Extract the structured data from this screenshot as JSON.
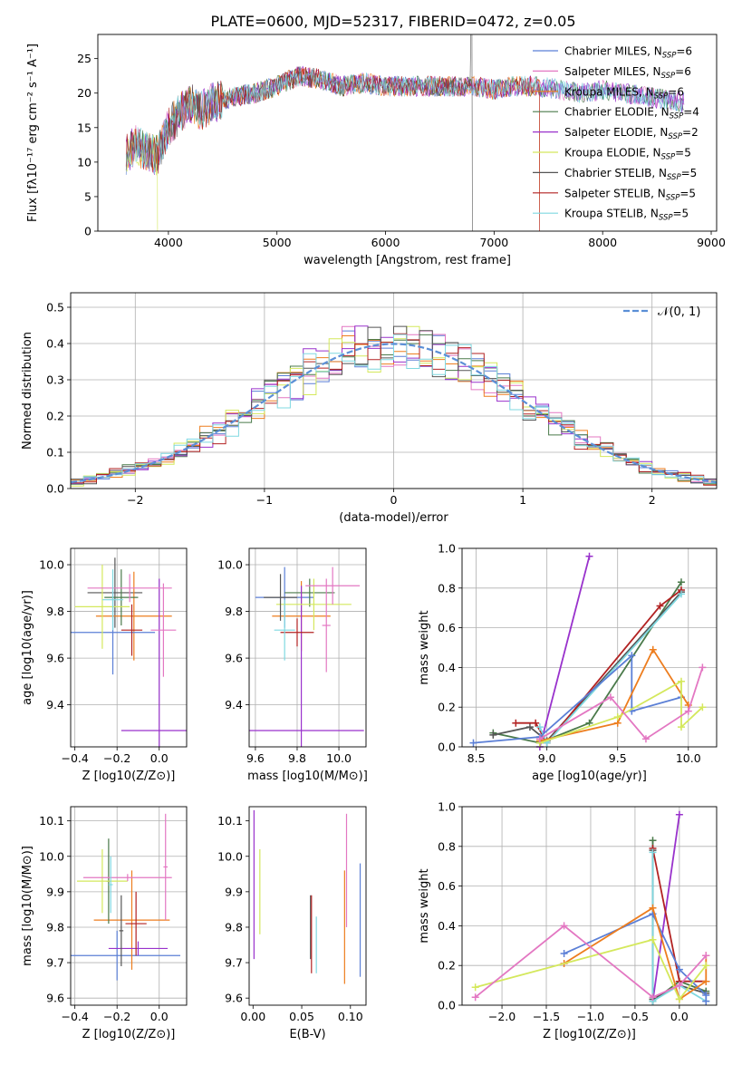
{
  "figure": {
    "title": "PLATE=0600, MJD=52317, FIBERID=0472, z=0.05"
  },
  "colors": {
    "chabrier_miles": "#5b7fd6",
    "salpeter_miles": "#e377c2",
    "kroupa_miles": "#ed7d1e",
    "chabrier_elodie": "#4a7a4a",
    "salpeter_elodie": "#9932cc",
    "kroupa_elodie": "#d4e85c",
    "chabrier_stelib": "#555555",
    "salpeter_stelib": "#b22222",
    "kroupa_stelib": "#7fd8e0",
    "normal_curve": "#5b8fd6"
  },
  "chart_data": [
    {
      "id": "spectrum",
      "type": "line",
      "xlabel": "wavelength [Angstrom, rest frame]",
      "ylabel": "Flux [fλ10⁻¹⁷ erg cm⁻² s⁻¹ A⁻¹]",
      "xlim": [
        3350,
        9050
      ],
      "ylim": [
        0,
        28.5
      ],
      "xticks": [
        4000,
        5000,
        6000,
        7000,
        8000,
        9000
      ],
      "yticks": [
        0,
        5,
        10,
        15,
        20,
        25
      ],
      "grid": false,
      "legend_position": "top-right",
      "legend": [
        "Chabrier MILES, N_SSP=6",
        "Salpeter MILES, N_SSP=6",
        "Kroupa MILES, N_SSP=6",
        "Chabrier ELODIE, N_SSP=4",
        "Salpeter ELODIE, N_SSP=2",
        "Kroupa ELODIE, N_SSP=5",
        "Chabrier STELIB, N_SSP=5",
        "Salpeter STELIB, N_SSP=5",
        "Kroupa STELIB, N_SSP=5"
      ],
      "continuum": [
        [
          3600,
          11
        ],
        [
          3700,
          12.5
        ],
        [
          3800,
          11.5
        ],
        [
          3900,
          11
        ],
        [
          4000,
          15
        ],
        [
          4100,
          17
        ],
        [
          4200,
          18.5
        ],
        [
          4300,
          17.5
        ],
        [
          4400,
          18.5
        ],
        [
          4600,
          19.5
        ],
        [
          4800,
          20
        ],
        [
          5000,
          21
        ],
        [
          5200,
          22.5
        ],
        [
          5400,
          22
        ],
        [
          5600,
          21
        ],
        [
          5800,
          21.5
        ],
        [
          6000,
          21
        ],
        [
          6200,
          21
        ],
        [
          6400,
          21
        ],
        [
          6600,
          21
        ],
        [
          6800,
          21
        ],
        [
          7000,
          20.5
        ],
        [
          7200,
          21
        ],
        [
          7400,
          21
        ],
        [
          7600,
          20.5
        ],
        [
          7800,
          20
        ],
        [
          8000,
          20.5
        ],
        [
          8200,
          20
        ],
        [
          8400,
          19.5
        ],
        [
          8600,
          19
        ],
        [
          8800,
          18.5
        ]
      ]
    },
    {
      "id": "residuals",
      "type": "histogram",
      "xlabel": "(data-model)/error",
      "ylabel": "Normed distribution",
      "xlim": [
        -2.5,
        2.5
      ],
      "ylim": [
        0,
        0.54
      ],
      "xticks": [
        -2,
        -1,
        0,
        1,
        2
      ],
      "yticks": [
        0.0,
        0.1,
        0.2,
        0.3,
        0.4,
        0.5
      ],
      "grid": true,
      "legend_position": "top-right",
      "legend": [
        "𝒩(0, 1)"
      ],
      "bin_width": 0.1
    },
    {
      "id": "age_vs_Z",
      "type": "scatter",
      "xlabel": "Z [log10(Z/Z⊙)]",
      "ylabel": "age [log10(age/yr)]",
      "xlim": [
        -0.42,
        0.13
      ],
      "ylim": [
        9.22,
        10.07
      ],
      "xticks": [
        -0.4,
        -0.2,
        0.0
      ],
      "yticks": [
        9.4,
        9.6,
        9.8,
        10.0
      ],
      "grid": true,
      "points": [
        {
          "x": -0.21,
          "y": 9.88,
          "xerr": 0.13,
          "yerr": 0.15,
          "color": "#555555"
        },
        {
          "x": -0.12,
          "y": 9.78,
          "xerr": 0.18,
          "yerr": 0.19,
          "color": "#ed7d1e"
        },
        {
          "x": -0.18,
          "y": 9.86,
          "xerr": 0.08,
          "yerr": 0.12,
          "color": "#4a7a4a"
        },
        {
          "x": -0.22,
          "y": 9.71,
          "xerr": 0.2,
          "yerr": 0.18,
          "color": "#5b7fd6"
        },
        {
          "x": 0.0,
          "y": 9.29,
          "xerr": 0.18,
          "yerr": 0.65,
          "color": "#9932cc"
        },
        {
          "x": -0.27,
          "y": 9.82,
          "xerr": 0.13,
          "yerr": 0.18,
          "color": "#d4e85c"
        },
        {
          "x": -0.13,
          "y": 9.72,
          "xerr": 0.05,
          "yerr": 0.11,
          "color": "#b22222"
        },
        {
          "x": -0.14,
          "y": 9.9,
          "xerr": 0.2,
          "yerr": 0.06,
          "color": "#e377c2"
        },
        {
          "x": 0.02,
          "y": 9.72,
          "xerr": 0.06,
          "yerr": 0.2,
          "color": "#e377c2"
        },
        {
          "x": -0.22,
          "y": 9.85,
          "xerr": 0.05,
          "yerr": 0.13,
          "color": "#7fd8e0"
        }
      ]
    },
    {
      "id": "age_vs_mass",
      "type": "scatter",
      "xlabel": "mass [log10(M/M⊙)]",
      "ylabel": "",
      "xlim": [
        9.57,
        10.13
      ],
      "ylim": [
        9.22,
        10.07
      ],
      "xticks": [
        9.6,
        9.8,
        10.0
      ],
      "yticks": [
        9.4,
        9.6,
        9.8,
        10.0
      ],
      "grid": true,
      "points": [
        {
          "x": 9.74,
          "y": 9.86,
          "xerr": 0.14,
          "yerr": 0.13,
          "color": "#5b7fd6"
        },
        {
          "x": 9.82,
          "y": 9.78,
          "xerr": 0.14,
          "yerr": 0.15,
          "color": "#ed7d1e"
        },
        {
          "x": 9.86,
          "y": 9.88,
          "xerr": 0.12,
          "yerr": 0.06,
          "color": "#4a7a4a"
        },
        {
          "x": 9.82,
          "y": 9.29,
          "xerr": 0.3,
          "yerr": 0.62,
          "color": "#9932cc"
        },
        {
          "x": 9.88,
          "y": 9.83,
          "xerr": 0.18,
          "yerr": 0.11,
          "color": "#d4e85c"
        },
        {
          "x": 9.8,
          "y": 9.71,
          "xerr": 0.08,
          "yerr": 0.06,
          "color": "#b22222"
        },
        {
          "x": 9.97,
          "y": 9.91,
          "xerr": 0.13,
          "yerr": 0.08,
          "color": "#e377c2"
        },
        {
          "x": 9.94,
          "y": 9.74,
          "xerr": 0.02,
          "yerr": 0.2,
          "color": "#e377c2"
        },
        {
          "x": 9.72,
          "y": 9.86,
          "xerr": 0.08,
          "yerr": 0.1,
          "color": "#555555"
        },
        {
          "x": 9.74,
          "y": 9.72,
          "xerr": 0.05,
          "yerr": 0.13,
          "color": "#7fd8e0"
        }
      ]
    },
    {
      "id": "massweight_vs_age",
      "type": "line",
      "xlabel": "age [log10(age/yr)]",
      "ylabel": "mass weight",
      "xlim": [
        8.4,
        10.2
      ],
      "ylim": [
        0,
        1
      ],
      "xticks": [
        8.5,
        9.0,
        9.5,
        10.0
      ],
      "yticks": [
        0.0,
        0.2,
        0.4,
        0.6,
        0.8,
        1.0
      ],
      "grid": true,
      "series": [
        {
          "color": "#9932cc",
          "x": [
            8.95,
            9.3
          ],
          "y": [
            0.0,
            0.96
          ]
        },
        {
          "color": "#4a7a4a",
          "x": [
            8.62,
            8.95,
            9.3,
            9.95
          ],
          "y": [
            0.07,
            0.02,
            0.12,
            0.83
          ]
        },
        {
          "color": "#555555",
          "x": [
            8.62,
            8.88,
            9.0,
            9.95
          ],
          "y": [
            0.06,
            0.1,
            0.03,
            0.78
          ]
        },
        {
          "color": "#b22222",
          "x": [
            8.78,
            8.92,
            9.0,
            9.8,
            9.95
          ],
          "y": [
            0.12,
            0.12,
            0.02,
            0.71,
            0.79
          ]
        },
        {
          "color": "#7fd8e0",
          "x": [
            8.95,
            9.0,
            9.95
          ],
          "y": [
            0.1,
            0.02,
            0.77
          ]
        },
        {
          "color": "#5b7fd6",
          "x": [
            8.48,
            8.95,
            9.6,
            9.6,
            9.95
          ],
          "y": [
            0.02,
            0.05,
            0.46,
            0.18,
            0.25
          ]
        },
        {
          "color": "#ed7d1e",
          "x": [
            8.95,
            9.5,
            9.75,
            10.0
          ],
          "y": [
            0.03,
            0.12,
            0.49,
            0.21
          ]
        },
        {
          "color": "#d4e85c",
          "x": [
            8.95,
            9.5,
            9.95,
            9.95,
            10.1
          ],
          "y": [
            0.02,
            0.15,
            0.33,
            0.1,
            0.2
          ]
        },
        {
          "color": "#e377c2",
          "x": [
            8.95,
            9.45,
            9.7,
            10.0,
            10.1
          ],
          "y": [
            0.04,
            0.25,
            0.04,
            0.18,
            0.4
          ]
        }
      ]
    },
    {
      "id": "mass_vs_Z",
      "type": "scatter",
      "xlabel": "Z [log10(Z/Z⊙)]",
      "ylabel": "mass [log10(M/M⊙)]",
      "xlim": [
        -0.42,
        0.13
      ],
      "ylim": [
        9.58,
        10.14
      ],
      "xticks": [
        -0.4,
        -0.2,
        0.0
      ],
      "yticks": [
        9.6,
        9.7,
        9.8,
        9.9,
        10.0,
        10.1
      ],
      "grid": true,
      "points": [
        {
          "x": -0.2,
          "y": 9.72,
          "xerr": 0.3,
          "yerr": 0.07,
          "color": "#5b7fd6"
        },
        {
          "x": -0.13,
          "y": 9.82,
          "xerr": 0.18,
          "yerr": 0.14,
          "color": "#ed7d1e"
        },
        {
          "x": -0.24,
          "y": 9.93,
          "xerr": 0.01,
          "yerr": 0.12,
          "color": "#4a7a4a"
        },
        {
          "x": -0.1,
          "y": 9.74,
          "xerr": 0.14,
          "yerr": 0.02,
          "color": "#9932cc"
        },
        {
          "x": -0.27,
          "y": 9.93,
          "xerr": 0.12,
          "yerr": 0.09,
          "color": "#d4e85c"
        },
        {
          "x": -0.11,
          "y": 9.81,
          "xerr": 0.05,
          "yerr": 0.09,
          "color": "#b22222"
        },
        {
          "x": -0.15,
          "y": 9.94,
          "xerr": 0.21,
          "yerr": 0.01,
          "color": "#e377c2"
        },
        {
          "x": 0.03,
          "y": 9.97,
          "xerr": 0.01,
          "yerr": 0.15,
          "color": "#e377c2"
        },
        {
          "x": -0.18,
          "y": 9.79,
          "xerr": 0.01,
          "yerr": 0.1,
          "color": "#555555"
        },
        {
          "x": -0.23,
          "y": 9.92,
          "xerr": 0.01,
          "yerr": 0.08,
          "color": "#7fd8e0"
        }
      ]
    },
    {
      "id": "mass_vs_EBV",
      "type": "scatter",
      "xlabel": "E(B-V)",
      "ylabel": "",
      "xlim": [
        -0.004,
        0.116
      ],
      "ylim": [
        9.58,
        10.14
      ],
      "xticks": [
        0.0,
        0.05,
        0.1
      ],
      "yticks": [
        9.6,
        9.7,
        9.8,
        9.9,
        10.0,
        10.1
      ],
      "grid": false,
      "points": [
        {
          "x": 0.001,
          "y": 9.92,
          "xerr": 0,
          "yerr": 0.21,
          "color": "#9932cc"
        },
        {
          "x": 0.007,
          "y": 9.9,
          "xerr": 0,
          "yerr": 0.12,
          "color": "#d4e85c"
        },
        {
          "x": 0.059,
          "y": 9.8,
          "xerr": 0,
          "yerr": 0.09,
          "color": "#555555"
        },
        {
          "x": 0.06,
          "y": 9.78,
          "xerr": 0,
          "yerr": 0.11,
          "color": "#b22222"
        },
        {
          "x": 0.065,
          "y": 9.75,
          "xerr": 0,
          "yerr": 0.08,
          "color": "#7fd8e0"
        },
        {
          "x": 0.094,
          "y": 9.8,
          "xerr": 0,
          "yerr": 0.16,
          "color": "#ed7d1e"
        },
        {
          "x": 0.096,
          "y": 9.96,
          "xerr": 0,
          "yerr": 0.16,
          "color": "#e377c2"
        },
        {
          "x": 0.11,
          "y": 9.82,
          "xerr": 0,
          "yerr": 0.16,
          "color": "#5b7fd6"
        }
      ]
    },
    {
      "id": "massweight_vs_Z",
      "type": "line",
      "xlabel": "Z [log10(Z/Z⊙)]",
      "ylabel": "mass weight",
      "xlim": [
        -2.45,
        0.42
      ],
      "ylim": [
        0,
        1
      ],
      "xticks": [
        -2.0,
        -1.5,
        -1.0,
        -0.5,
        0.0
      ],
      "yticks": [
        0.0,
        0.2,
        0.4,
        0.6,
        0.8,
        1.0
      ],
      "grid": true,
      "series": [
        {
          "color": "#9932cc",
          "x": [
            -0.3,
            0.0
          ],
          "y": [
            0.02,
            0.96
          ]
        },
        {
          "color": "#4a7a4a",
          "x": [
            -0.3,
            -0.3,
            0.0,
            0.3
          ],
          "y": [
            0.83,
            0.02,
            0.12,
            0.07
          ]
        },
        {
          "color": "#555555",
          "x": [
            -0.3,
            -0.3,
            0.0,
            0.3
          ],
          "y": [
            0.78,
            0.03,
            0.1,
            0.06
          ]
        },
        {
          "color": "#b22222",
          "x": [
            -0.3,
            0.0,
            0.3,
            0.3
          ],
          "y": [
            0.79,
            0.12,
            0.12,
            0.12
          ]
        },
        {
          "color": "#7fd8e0",
          "x": [
            -0.3,
            -0.3,
            0.0,
            0.3
          ],
          "y": [
            0.77,
            0.02,
            0.1,
            0.02
          ]
        },
        {
          "color": "#5b7fd6",
          "x": [
            -1.3,
            -0.3,
            0.0,
            0.3,
            0.3
          ],
          "y": [
            0.26,
            0.46,
            0.18,
            0.05,
            0.02
          ]
        },
        {
          "color": "#ed7d1e",
          "x": [
            -1.3,
            -0.3,
            0.0,
            0.3,
            0.3
          ],
          "y": [
            0.21,
            0.49,
            0.03,
            0.12,
            0.25
          ]
        },
        {
          "color": "#d4e85c",
          "x": [
            -2.3,
            -0.3,
            0.0,
            0.3
          ],
          "y": [
            0.09,
            0.33,
            0.03,
            0.2
          ]
        },
        {
          "color": "#e377c2",
          "x": [
            -2.3,
            -1.3,
            -0.3,
            0.0,
            0.3
          ],
          "y": [
            0.04,
            0.4,
            0.04,
            0.1,
            0.25
          ]
        }
      ]
    }
  ]
}
